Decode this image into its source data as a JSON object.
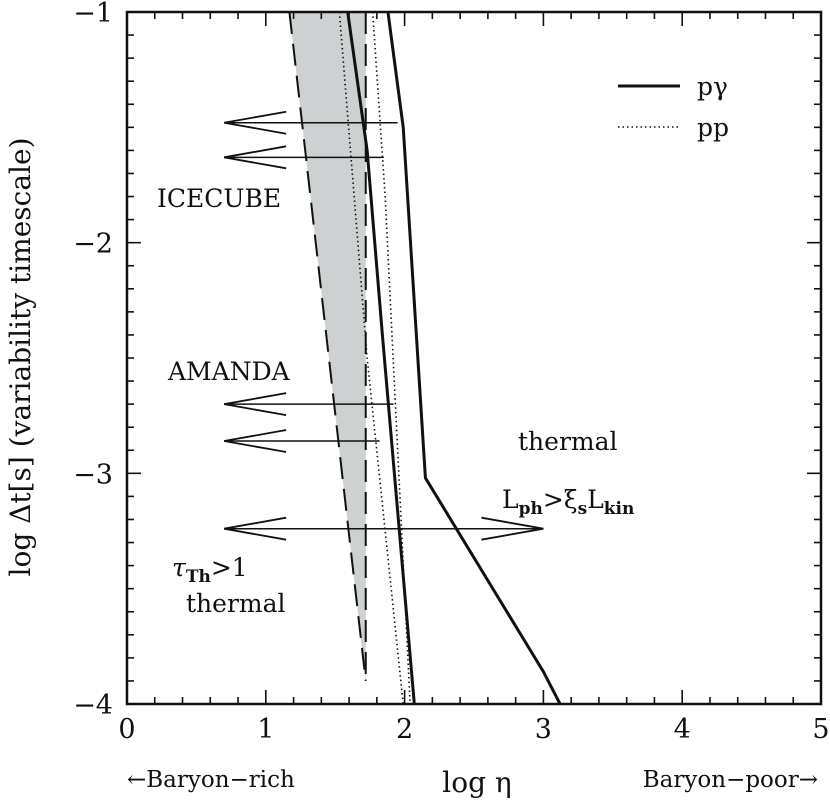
{
  "chart_data": {
    "type": "line",
    "xlabel": "log η",
    "ylabel": "log Δt[s]  (variability timescale)",
    "xlim": [
      0,
      5
    ],
    "ylim": [
      -4,
      -1
    ],
    "x_ticks": [
      "0",
      "1",
      "2",
      "3",
      "4",
      "5"
    ],
    "y_ticks": [
      "−1",
      "−2",
      "−3",
      "−4"
    ],
    "x_ticks_values": [
      0,
      1,
      2,
      3,
      4,
      5
    ],
    "y_ticks_values": [
      -1,
      -2,
      -3,
      -4
    ],
    "x_side_labels": {
      "left": "←Baryon−rich",
      "right": "Baryon−poor→"
    },
    "legend": {
      "placement": "top-right",
      "entries": [
        {
          "label": "pγ",
          "style": "solid"
        },
        {
          "label": "pp",
          "style": "dotted"
        }
      ]
    },
    "series": [
      {
        "name": "pγ",
        "style": "solid",
        "width": "thick",
        "x": [
          1.59,
          1.73,
          1.84,
          2.07
        ],
        "y": [
          -1.0,
          -1.6,
          -2.4,
          -4.0
        ]
      },
      {
        "name": "pγ",
        "style": "solid",
        "width": "thick",
        "x": [
          1.88,
          1.99,
          2.15,
          3.0,
          3.12
        ],
        "y": [
          -1.0,
          -1.5,
          -3.02,
          -3.86,
          -4.0
        ]
      },
      {
        "name": "pp",
        "style": "dotted",
        "x": [
          1.53,
          1.73,
          1.99
        ],
        "y": [
          -1.0,
          -2.5,
          -4.0
        ]
      },
      {
        "name": "pp",
        "style": "dotted",
        "x": [
          1.77,
          1.86,
          2.04
        ],
        "y": [
          -1.0,
          -1.8,
          -4.0
        ]
      }
    ],
    "shaded_region": {
      "boundary_dashed": {
        "x": [
          1.17,
          1.72
        ],
        "y": [
          -1.0,
          -3.9
        ]
      },
      "boundary_vertical": {
        "x": [
          1.72,
          1.72
        ],
        "y": [
          -1.0,
          -3.9
        ]
      }
    },
    "arrows": [
      {
        "group": "ICECUBE",
        "x_from": 1.95,
        "x_to": 0.7,
        "y": -1.48
      },
      {
        "group": "ICECUBE",
        "x_from": 1.85,
        "x_to": 0.7,
        "y": -1.63
      },
      {
        "group": "AMANDA",
        "x_from": 1.92,
        "x_to": 0.7,
        "y": -2.7
      },
      {
        "group": "AMANDA",
        "x_from": 1.82,
        "x_to": 0.7,
        "y": -2.86
      },
      {
        "group": "thermal boundary",
        "x_from": 1.72,
        "x_to": 0.7,
        "y": -3.24
      },
      {
        "group": "thermal boundary",
        "x_from": 1.72,
        "x_to": 3.0,
        "y": -3.24
      }
    ],
    "annotations": {
      "icecube": "ICECUBE",
      "amanda": "AMANDA",
      "thermal_right": "thermal",
      "ineq": {
        "l1": "L",
        "s1": "ph",
        "op": ">ξ",
        "s2": "s",
        "l2": "L",
        "s3": "kin"
      },
      "tau": {
        "sym": "τ",
        "sub": "Th",
        "rest": ">1"
      },
      "thermal_left": "thermal"
    }
  }
}
